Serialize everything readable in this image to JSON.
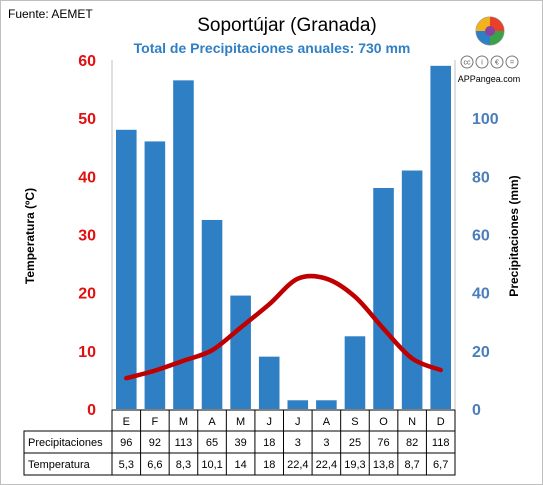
{
  "source": "Fuente: AEMET",
  "credit": {
    "site": "APPangea.com",
    "cc_badges": [
      "cc",
      "i",
      "€",
      "="
    ]
  },
  "chart_data": {
    "type": "bar+line",
    "title": "Soportújar (Granada)",
    "subtitle": "Total de Precipitaciones anuales: 730 mm",
    "categories": [
      "E",
      "F",
      "M",
      "A",
      "M",
      "J",
      "J",
      "A",
      "S",
      "O",
      "N",
      "D"
    ],
    "series": [
      {
        "name": "Precipitaciones",
        "type": "bar",
        "axis": "right",
        "values": [
          96,
          92,
          113,
          65,
          39,
          18,
          3,
          3,
          25,
          76,
          82,
          118
        ],
        "labels": [
          "96",
          "92",
          "113",
          "65",
          "39",
          "18",
          "3",
          "3",
          "25",
          "76",
          "82",
          "118"
        ],
        "color": "#2f7fc4"
      },
      {
        "name": "Temperatura",
        "type": "line",
        "axis": "left",
        "values": [
          5.3,
          6.6,
          8.3,
          10.1,
          14,
          18,
          22.4,
          22.4,
          19.3,
          13.8,
          8.7,
          6.7
        ],
        "labels": [
          "5,3",
          "6,6",
          "8,3",
          "10,1",
          "14",
          "18",
          "22,4",
          "22,4",
          "19,3",
          "13,8",
          "8,7",
          "6,7"
        ],
        "color": "#c00000"
      }
    ],
    "y_left": {
      "label": "Temperatura (ºC)",
      "range": [
        0,
        60
      ],
      "ticks": [
        "0",
        "10",
        "20",
        "30",
        "40",
        "50",
        "60"
      ],
      "color": "#e01010"
    },
    "y_right": {
      "label": "Precipitaciones (mm)",
      "range": [
        0,
        120
      ],
      "ticks": [
        "0",
        "20",
        "40",
        "60",
        "80",
        "100"
      ],
      "color": "#4a7ebb"
    },
    "grid": false,
    "legend": "none",
    "table_rows": [
      "Precipitaciones",
      "Temperatura"
    ]
  }
}
